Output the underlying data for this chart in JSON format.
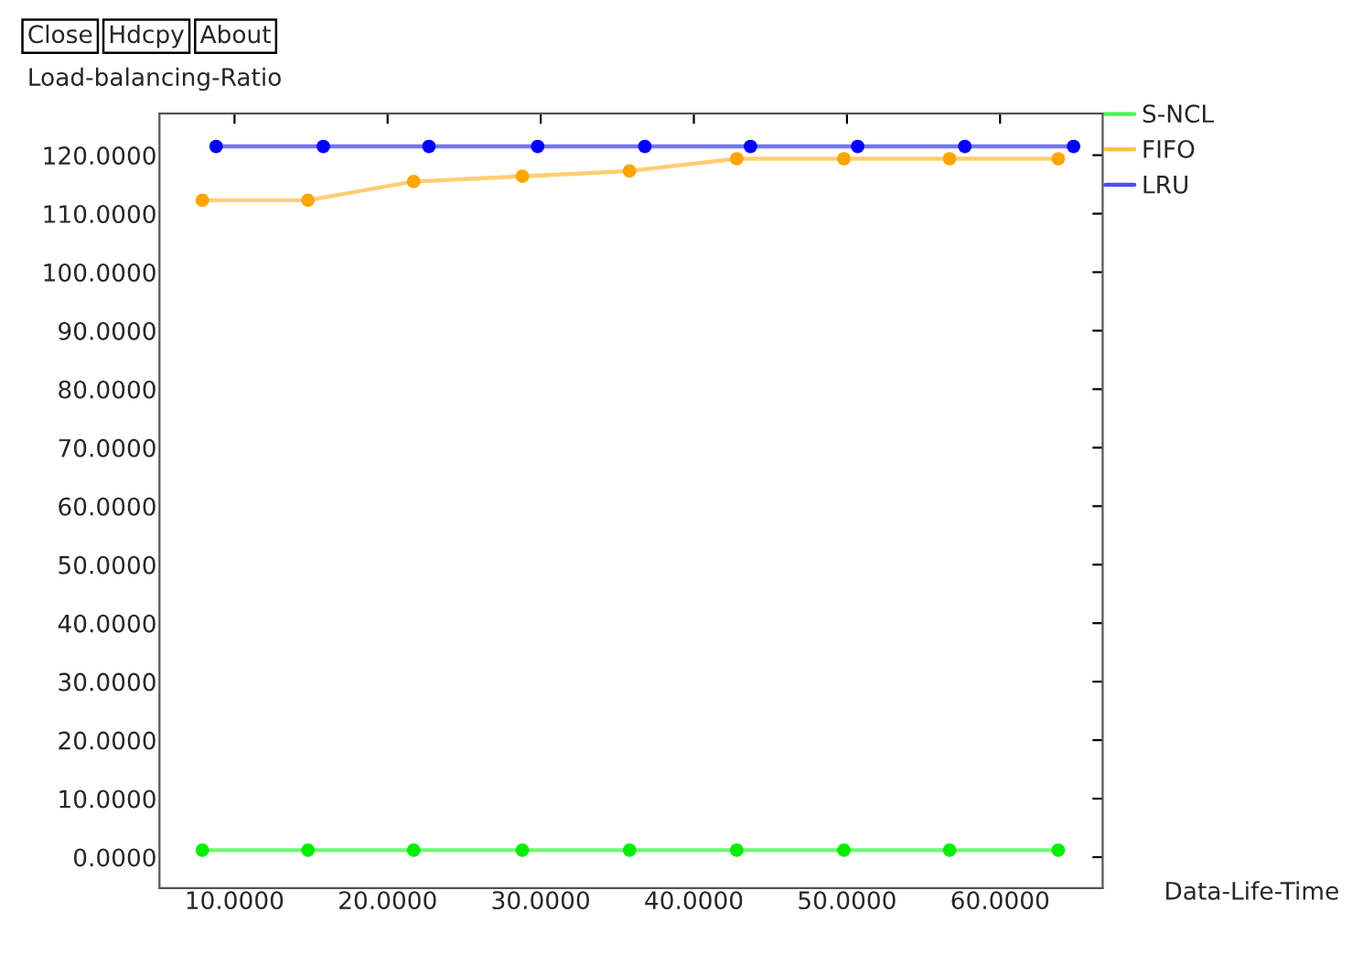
{
  "chart_data": {
    "type": "line",
    "ylabel": "Load-balancing-Ratio",
    "xlabel": "Data-Life-Time",
    "annotations": [
      "Close",
      "Hdcpy",
      "About"
    ],
    "xlim": [
      5.1,
      66.7
    ],
    "ylim": [
      -5.3,
      127.1
    ],
    "xticks": [
      {
        "value": 10,
        "label": "10.0000"
      },
      {
        "value": 20,
        "label": "20.0000"
      },
      {
        "value": 30,
        "label": "30.0000"
      },
      {
        "value": 40,
        "label": "40.0000"
      },
      {
        "value": 50,
        "label": "50.0000"
      },
      {
        "value": 60,
        "label": "60.0000"
      }
    ],
    "yticks": [
      {
        "value": 0,
        "label": "0.0000"
      },
      {
        "value": 10,
        "label": "10.0000"
      },
      {
        "value": 20,
        "label": "20.0000"
      },
      {
        "value": 30,
        "label": "30.0000"
      },
      {
        "value": 40,
        "label": "40.0000"
      },
      {
        "value": 50,
        "label": "50.0000"
      },
      {
        "value": 60,
        "label": "60.0000"
      },
      {
        "value": 70,
        "label": "70.0000"
      },
      {
        "value": 80,
        "label": "80.0000"
      },
      {
        "value": 90,
        "label": "90.0000"
      },
      {
        "value": 100,
        "label": "100.0000"
      },
      {
        "value": 110,
        "label": "110.0000"
      },
      {
        "value": 120,
        "label": "120.0000"
      }
    ],
    "grid": false,
    "legend": "right",
    "marker": "circle",
    "line_style": "solid",
    "series": [
      {
        "name": "S-NCL",
        "color": "#00ee00",
        "x": [
          7.9,
          14.8,
          21.7,
          28.8,
          35.8,
          42.8,
          49.8,
          56.7,
          63.8
        ],
        "values": [
          1.2,
          1.2,
          1.2,
          1.2,
          1.2,
          1.2,
          1.2,
          1.2,
          1.2
        ]
      },
      {
        "name": "FIFO",
        "color": "#ffa500",
        "x": [
          7.9,
          14.8,
          21.7,
          28.8,
          35.8,
          42.8,
          49.8,
          56.7,
          63.8
        ],
        "values": [
          112.3,
          112.3,
          115.5,
          116.4,
          117.3,
          119.4,
          119.4,
          119.4,
          119.4
        ]
      },
      {
        "name": "LRU",
        "color": "#0000ff",
        "x": [
          8.8,
          15.8,
          22.7,
          29.8,
          36.8,
          43.7,
          50.7,
          57.7,
          64.8
        ],
        "values": [
          121.5,
          121.5,
          121.5,
          121.5,
          121.5,
          121.5,
          121.5,
          121.5,
          121.5
        ]
      }
    ]
  }
}
